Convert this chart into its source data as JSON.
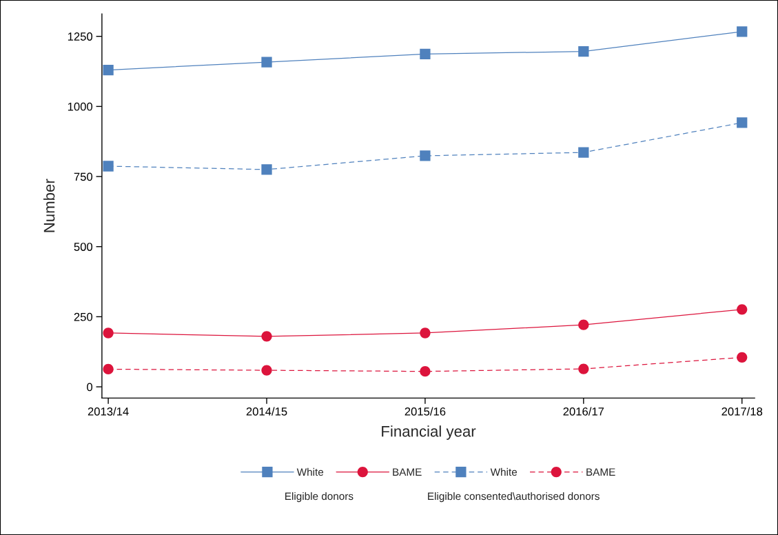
{
  "chart_data": {
    "type": "line",
    "xlabel": "Financial year",
    "ylabel": "Number",
    "categories": [
      "2013/14",
      "2014/15",
      "2015/16",
      "2016/17",
      "2017/18"
    ],
    "series": [
      {
        "name": "White",
        "color": "#4f81bd",
        "marker": "square",
        "line_style": "solid",
        "values": [
          1130,
          1158,
          1187,
          1196,
          1267
        ]
      },
      {
        "name": "BAME",
        "color": "#dc143c",
        "marker": "circle",
        "line_style": "solid",
        "values": [
          192,
          180,
          192,
          221,
          276
        ]
      },
      {
        "name": "White",
        "color": "#4f81bd",
        "marker": "square",
        "line_style": "dashed",
        "values": [
          787,
          775,
          824,
          836,
          942
        ]
      },
      {
        "name": "BAME",
        "color": "#dc143c",
        "marker": "circle",
        "line_style": "dashed",
        "values": [
          63,
          59,
          55,
          64,
          105
        ]
      }
    ],
    "ylim": [
      -40,
      1330
    ],
    "yticks": [
      0,
      250,
      500,
      750,
      1000,
      1250
    ],
    "grid": false,
    "legend": "bottom",
    "annotations": [
      "Eligible donors",
      "Eligible consented\\authorised donors"
    ]
  }
}
